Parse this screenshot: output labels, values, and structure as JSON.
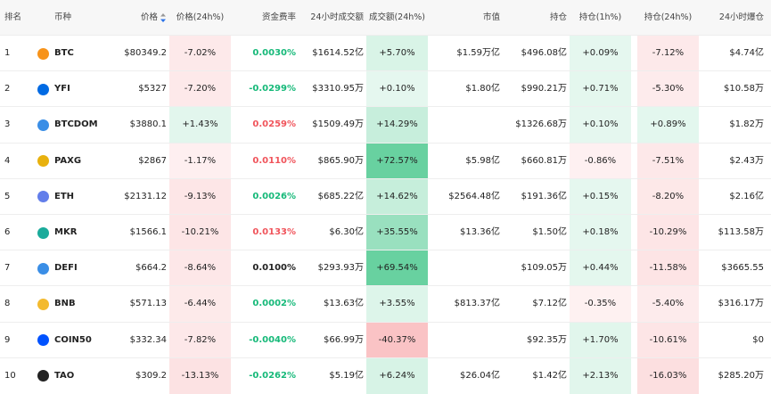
{
  "table": {
    "headers": [
      "排名",
      "币种",
      "价格",
      "价格(24h%)",
      "资金费率",
      "24小时成交额",
      "成交额(24h%)",
      "市值",
      "持仓",
      "持仓(1h%)",
      "持仓(24h%)",
      "24小时爆仓"
    ],
    "rows": [
      [
        1,
        "BTC",
        "$80349.2",
        "-7.02%",
        "0.0030%",
        "$1614.52亿",
        "+5.70%",
        "$1.59万亿",
        "$496.08亿",
        "+0.09%",
        "-7.12%",
        "$4.74亿"
      ],
      [
        2,
        "YFI",
        "$5327",
        "-7.20%",
        "-0.0299%",
        "$3310.95万",
        "+0.10%",
        "$1.80亿",
        "$990.21万",
        "+0.71%",
        "-5.30%",
        "$10.58万"
      ],
      [
        3,
        "BTCDOM",
        "$3880.1",
        "+1.43%",
        "0.0259%",
        "$1509.49万",
        "+14.29%",
        null,
        "$1326.68万",
        "+0.10%",
        "+0.89%",
        "$1.82万"
      ],
      [
        4,
        "PAXG",
        "$2867",
        "-1.17%",
        "0.0110%",
        "$865.90万",
        "+72.57%",
        "$5.98亿",
        "$660.81万",
        "-0.86%",
        "-7.51%",
        "$2.43万"
      ],
      [
        5,
        "ETH",
        "$2131.12",
        "-9.13%",
        "0.0026%",
        "$685.22亿",
        "+14.62%",
        "$2564.48亿",
        "$191.36亿",
        "+0.15%",
        "-8.20%",
        "$2.16亿"
      ],
      [
        6,
        "MKR",
        "$1566.1",
        "-10.21%",
        "0.0133%",
        "$6.30亿",
        "+35.55%",
        "$13.36亿",
        "$1.50亿",
        "+0.18%",
        "-10.29%",
        "$113.58万"
      ],
      [
        7,
        "DEFI",
        "$664.2",
        "-8.64%",
        "0.0100%",
        "$293.93万",
        "+69.54%",
        null,
        "$109.05万",
        "+0.44%",
        "-11.58%",
        "$3665.55"
      ],
      [
        8,
        "BNB",
        "$571.13",
        "-6.44%",
        "0.0002%",
        "$13.63亿",
        "+3.55%",
        "$813.37亿",
        "$7.12亿",
        "-0.35%",
        "-5.40%",
        "$316.17万"
      ],
      [
        9,
        "COIN50",
        "$332.34",
        "-7.82%",
        "-0.0040%",
        "$66.99万",
        "-40.37%",
        null,
        "$92.35万",
        "+1.70%",
        "-10.61%",
        "$0"
      ],
      [
        10,
        "TAO",
        "$309.2",
        "-13.13%",
        "-0.0262%",
        "$5.19亿",
        "+6.24%",
        "$26.04亿",
        "$1.42亿",
        "+2.13%",
        "-16.03%",
        "$285.20万"
      ]
    ],
    "funding_colors": [
      "#16b979",
      "#16b979",
      "#f0545b",
      "#f0545b",
      "#16b979",
      "#f0545b",
      "#222222",
      "#16b979",
      "#16b979",
      "#16b979"
    ],
    "icon_colors": [
      "#f7931a",
      "#006ae3",
      "#3a8ee6",
      "#e8b10e",
      "#627eea",
      "#1aab9b",
      "#3a8ee6",
      "#f3ba2f",
      "#0052ff",
      "#222222"
    ]
  }
}
